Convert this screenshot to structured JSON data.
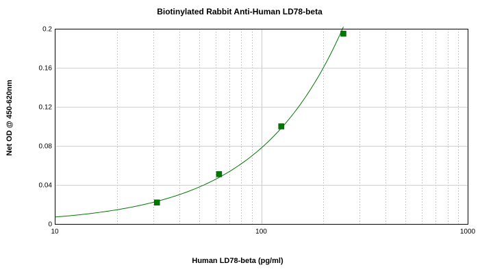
{
  "chart_data": {
    "type": "scatter",
    "title": "Biotinylated Rabbit Anti-Human LD78-beta",
    "xlabel": "Human LD78-beta (pg/ml)",
    "ylabel": "Net OD @ 450-620nm",
    "xscale": "log",
    "xlim": [
      10,
      1000
    ],
    "ylim": [
      0,
      0.2
    ],
    "x_ticks": [
      10,
      100,
      1000
    ],
    "x_tick_labels": [
      "10",
      "100",
      "1000"
    ],
    "y_ticks": [
      0,
      0.04,
      0.08,
      0.12,
      0.16,
      0.2
    ],
    "y_tick_labels": [
      "0",
      "0.04",
      "0.08",
      "0.12",
      "0.16",
      "0.2"
    ],
    "grid": true,
    "legend": "none",
    "series": [
      {
        "x": [
          31.25,
          62.5,
          125,
          250
        ],
        "y": [
          0.022,
          0.051,
          0.1,
          0.195
        ],
        "marker": "square",
        "color": "#007700",
        "fit": "curve",
        "fit_color": "#007700"
      }
    ]
  }
}
